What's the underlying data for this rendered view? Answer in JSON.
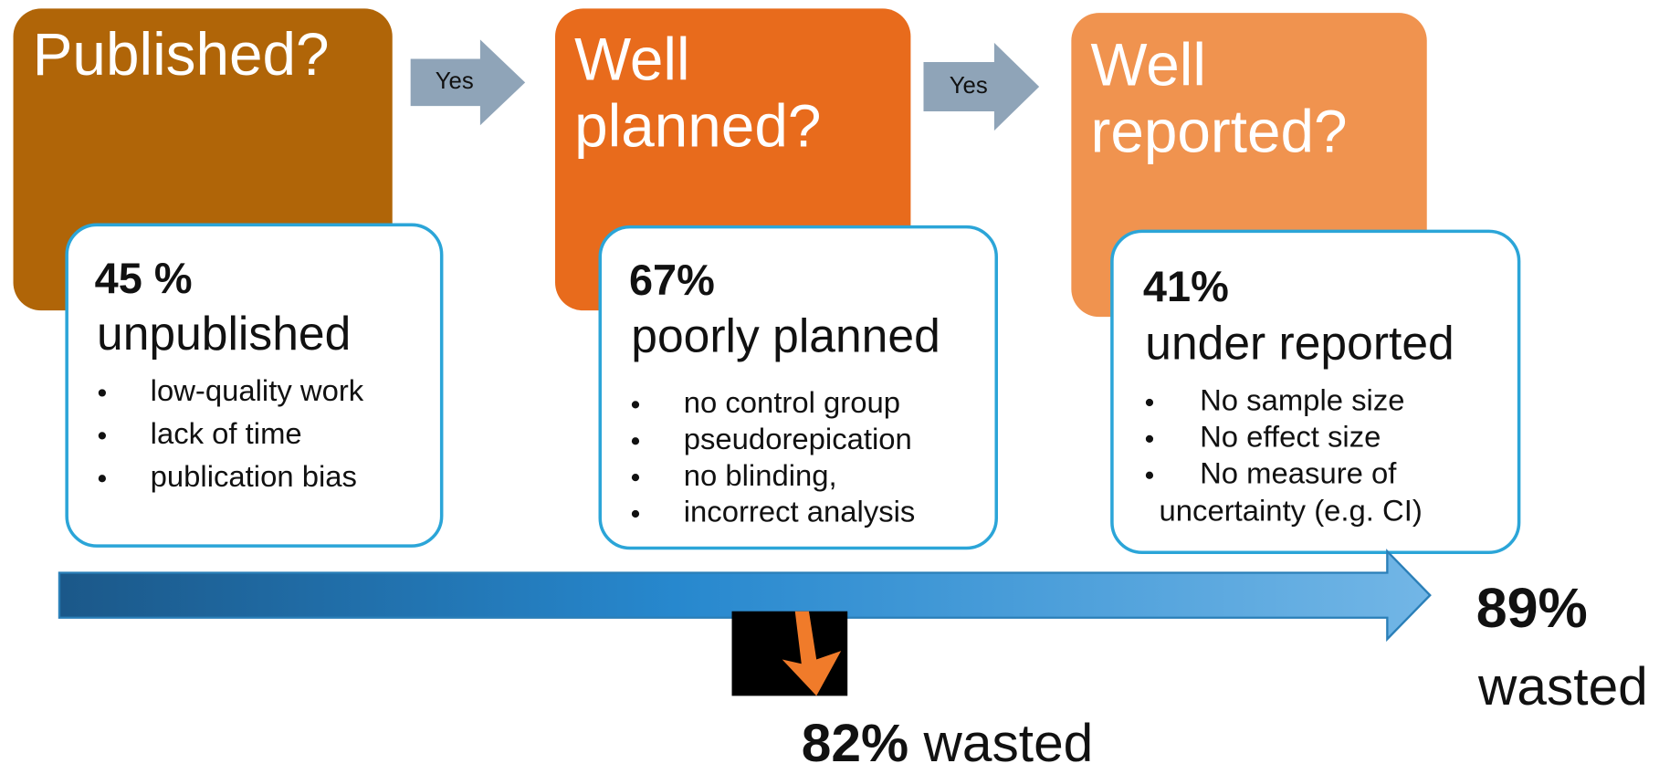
{
  "stages": [
    {
      "title": [
        "Published?"
      ],
      "percent": "45 %",
      "label": "unpublished",
      "bullets": [
        "low-quality work",
        "lack of time",
        "publication bias"
      ]
    },
    {
      "title": [
        "Well",
        "planned?"
      ],
      "percent": "67%",
      "label": "poorly planned",
      "bullets": [
        "no control group",
        "pseudorepication",
        "no blinding,",
        "incorrect analysis"
      ]
    },
    {
      "title": [
        "Well",
        "reported?"
      ],
      "percent": "41%",
      "label": "under reported",
      "bullets": [
        "No sample size",
        "No effect size",
        "No measure of"
      ],
      "continuation": "uncertainty (e.g. CI)"
    }
  ],
  "connectors": [
    "Yes",
    "Yes"
  ],
  "intermediate_waste": {
    "percent": "82%",
    "label": "wasted"
  },
  "total_waste": {
    "percent": "89%",
    "label": "wasted"
  }
}
